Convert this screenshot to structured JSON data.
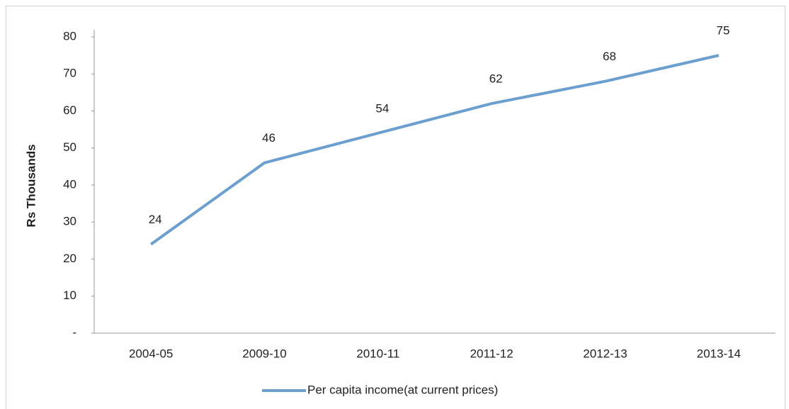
{
  "chart_data": {
    "type": "line",
    "y_label": "Rs Thousands",
    "categories": [
      "2004-05",
      "2009-10",
      "2010-11",
      "2011-12",
      "2012-13",
      "2013-14"
    ],
    "series": [
      {
        "name": "Per capita income(at current prices)",
        "color": "#6a9fd0",
        "values": [
          24,
          46,
          54,
          62,
          68,
          75
        ]
      }
    ],
    "ylim": [
      0,
      80
    ],
    "yticks": [
      {
        "value": 0,
        "label": "-"
      },
      10,
      20,
      30,
      40,
      50,
      60,
      70,
      80
    ],
    "grid": false,
    "legend": "bottom",
    "data_labels": true
  }
}
